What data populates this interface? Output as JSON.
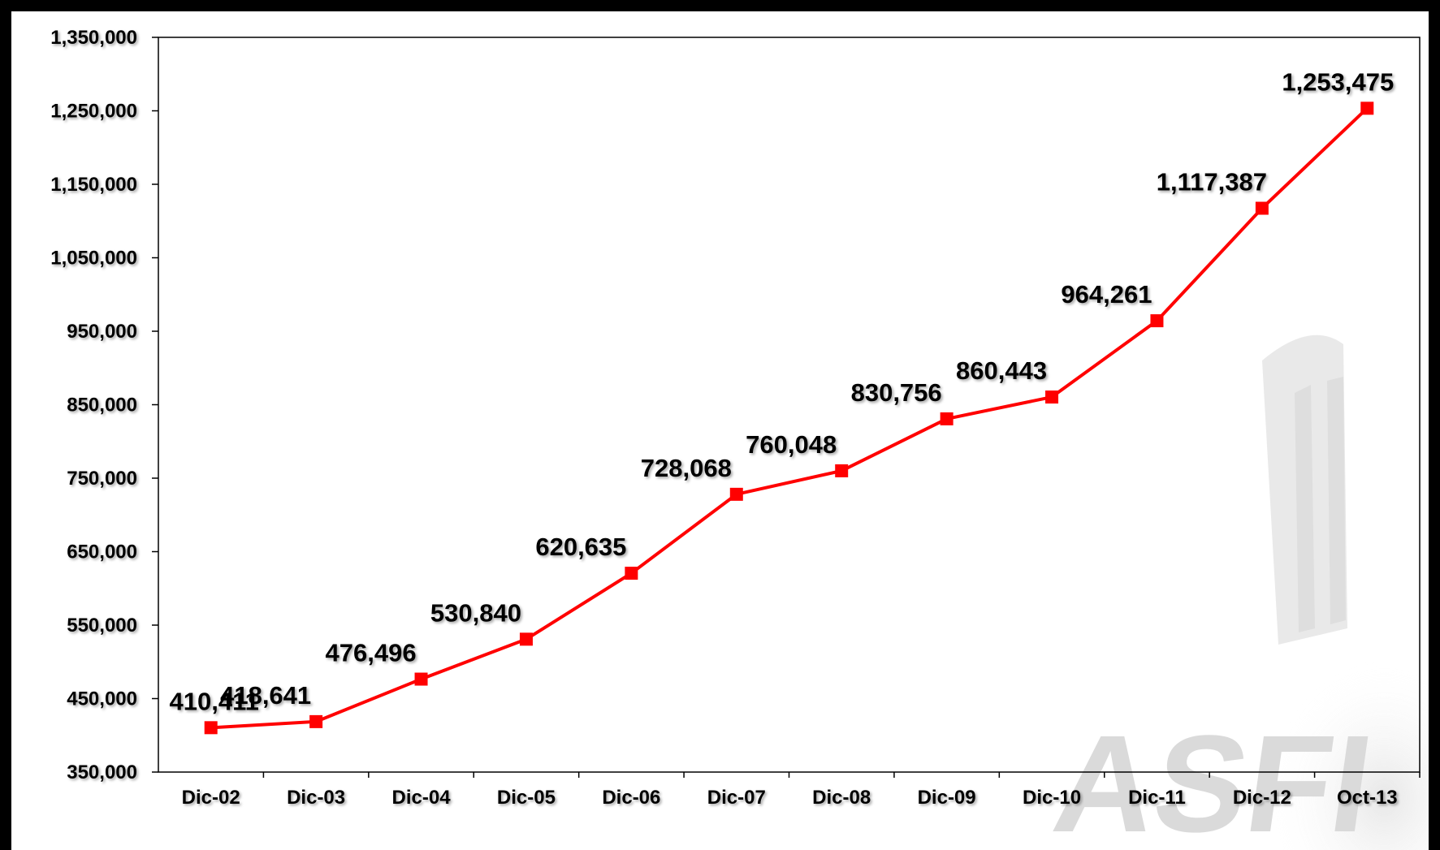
{
  "chart_data": {
    "type": "line",
    "categories": [
      "Dic-02",
      "Dic-03",
      "Dic-04",
      "Dic-05",
      "Dic-06",
      "Dic-07",
      "Dic-08",
      "Dic-09",
      "Dic-10",
      "Dic-11",
      "Dic-12",
      "Oct-13"
    ],
    "series": [
      {
        "values": [
          410411,
          418641,
          476496,
          530840,
          620635,
          728068,
          760048,
          830756,
          860443,
          964261,
          1117387,
          1253475
        ],
        "labels": [
          "410,411",
          "418,641",
          "476,496",
          "530,840",
          "620,635",
          "728,068",
          "760,048",
          "830,756",
          "860,443",
          "964,261",
          "1,117,387",
          "1,253,475"
        ],
        "color": "#ff0000",
        "marker": "square"
      }
    ],
    "y_ticks": [
      "350,000",
      "450,000",
      "550,000",
      "650,000",
      "750,000",
      "850,000",
      "950,000",
      "1,050,000",
      "1,150,000",
      "1,250,000",
      "1,350,000"
    ],
    "ylim": [
      350000,
      1350000
    ],
    "title": "",
    "xlabel": "",
    "ylabel": "",
    "grid": false,
    "legend": "none",
    "watermark_text": "ASFI",
    "frame_color": "#000000",
    "background": "#ffffff"
  }
}
